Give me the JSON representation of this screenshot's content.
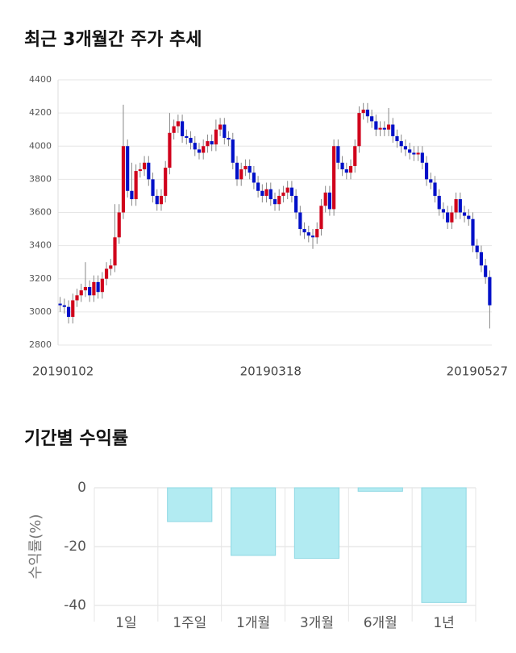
{
  "chart_data": [
    {
      "type": "candlestick",
      "title": "최근 3개월간 주가 추세",
      "categories": [
        "20190102",
        null,
        null,
        null,
        null,
        null,
        null,
        null,
        null,
        null,
        null,
        null,
        null,
        null,
        null,
        null,
        null,
        null,
        null,
        null,
        null,
        null,
        null,
        null,
        null,
        null,
        null,
        null,
        null,
        null,
        null,
        null,
        null,
        null,
        null,
        null,
        null,
        null,
        null,
        null,
        null,
        null,
        null,
        null,
        null,
        null,
        null,
        null,
        null,
        null,
        "20190318",
        null,
        null,
        null,
        null,
        null,
        null,
        null,
        null,
        null,
        null,
        null,
        null,
        null,
        null,
        null,
        null,
        null,
        null,
        null,
        null,
        null,
        null,
        null,
        null,
        null,
        null,
        null,
        null,
        null,
        null,
        null,
        null,
        null,
        null,
        null,
        null,
        null,
        null,
        null,
        null,
        null,
        null,
        null,
        null,
        null,
        null,
        null,
        null,
        null,
        null,
        null,
        "20190527"
      ],
      "open": [
        3050,
        3040,
        3030,
        2970,
        3070,
        3100,
        3130,
        3150,
        3100,
        3180,
        3120,
        3200,
        3260,
        3280,
        3450,
        3600,
        4000,
        3730,
        3680,
        3850,
        3860,
        3900,
        3800,
        3700,
        3650,
        3700,
        3870,
        4080,
        4120,
        4150,
        4060,
        4050,
        4020,
        3980,
        3960,
        4000,
        4030,
        4010,
        4100,
        4130,
        4050,
        4040,
        3900,
        3800,
        3860,
        3880,
        3840,
        3780,
        3730,
        3700,
        3740,
        3680,
        3650,
        3700,
        3720,
        3750,
        3700,
        3600,
        3500,
        3480,
        3460,
        3450,
        3500,
        3640,
        3720,
        3620,
        4000,
        3900,
        3860,
        3840,
        3880,
        4000,
        4200,
        4220,
        4180,
        4150,
        4100,
        4110,
        4100,
        4130,
        4060,
        4030,
        4000,
        3980,
        3960,
        3950,
        3960,
        3900,
        3800,
        3780,
        3700,
        3620,
        3600,
        3540,
        3600,
        3680,
        3600,
        3580,
        3560,
        3400,
        3360,
        3280,
        3210
      ],
      "high": [
        3090,
        3080,
        3070,
        3110,
        3140,
        3170,
        3300,
        3190,
        3220,
        3220,
        3240,
        3300,
        3320,
        3650,
        3650,
        4250,
        4040,
        3900,
        3890,
        3900,
        3940,
        3940,
        3840,
        3740,
        3740,
        3910,
        4200,
        4160,
        4190,
        4190,
        4100,
        4090,
        4060,
        4020,
        4040,
        4070,
        4070,
        4160,
        4170,
        4170,
        4090,
        4080,
        3940,
        3900,
        3920,
        3920,
        3880,
        3820,
        3770,
        3780,
        3780,
        3720,
        3740,
        3760,
        3790,
        3790,
        3740,
        3640,
        3540,
        3520,
        3500,
        3540,
        3680,
        3760,
        3760,
        4040,
        4040,
        3940,
        3900,
        3920,
        4040,
        4240,
        4260,
        4260,
        4220,
        4190,
        4150,
        4150,
        4230,
        4170,
        4100,
        4070,
        4040,
        4020,
        4000,
        4000,
        4000,
        3940,
        3840,
        3820,
        3740,
        3660,
        3640,
        3640,
        3720,
        3720,
        3640,
        3620,
        3600,
        3440,
        3400,
        3320,
        3250
      ],
      "low": [
        3000,
        2990,
        2930,
        2930,
        3030,
        3060,
        3090,
        3060,
        3060,
        3080,
        3080,
        3160,
        3220,
        3240,
        3410,
        3560,
        3690,
        3640,
        3640,
        3810,
        3820,
        3760,
        3660,
        3610,
        3610,
        3660,
        3830,
        4040,
        4080,
        4020,
        4010,
        3980,
        3940,
        3920,
        3920,
        3960,
        3970,
        3970,
        4060,
        4010,
        4000,
        3860,
        3760,
        3760,
        3820,
        3800,
        3740,
        3690,
        3660,
        3660,
        3640,
        3610,
        3610,
        3660,
        3680,
        3660,
        3560,
        3460,
        3440,
        3420,
        3380,
        3410,
        3460,
        3600,
        3580,
        3580,
        3860,
        3820,
        3800,
        3800,
        3840,
        3960,
        4160,
        4140,
        4110,
        4060,
        4060,
        4060,
        4060,
        4020,
        3990,
        3960,
        3940,
        3920,
        3910,
        3910,
        3860,
        3760,
        3740,
        3660,
        3580,
        3560,
        3500,
        3500,
        3560,
        3560,
        3540,
        3520,
        3360,
        3320,
        3240,
        3170,
        2900
      ],
      "close": [
        3040,
        3030,
        2970,
        3070,
        3100,
        3130,
        3150,
        3100,
        3180,
        3120,
        3200,
        3260,
        3280,
        3450,
        3600,
        4000,
        3730,
        3680,
        3850,
        3860,
        3900,
        3800,
        3700,
        3650,
        3700,
        3870,
        4080,
        4120,
        4150,
        4060,
        4050,
        4020,
        3980,
        3960,
        4000,
        4030,
        4010,
        4100,
        4130,
        4050,
        4040,
        3900,
        3800,
        3860,
        3880,
        3840,
        3780,
        3730,
        3700,
        3740,
        3680,
        3650,
        3700,
        3720,
        3750,
        3700,
        3600,
        3500,
        3480,
        3460,
        3450,
        3500,
        3640,
        3720,
        3620,
        4000,
        3900,
        3860,
        3840,
        3880,
        4000,
        4200,
        4220,
        4180,
        4150,
        4100,
        4110,
        4100,
        4130,
        4060,
        4030,
        4000,
        3980,
        3960,
        3950,
        3960,
        3900,
        3800,
        3780,
        3700,
        3620,
        3600,
        3540,
        3600,
        3680,
        3600,
        3580,
        3560,
        3400,
        3360,
        3280,
        3210,
        3040
      ],
      "up_color": "#d0021b",
      "down_color": "#0010c8",
      "ylim": [
        2800,
        4400
      ],
      "yticks": [
        2800,
        3000,
        3200,
        3400,
        3600,
        3800,
        4000,
        4200,
        4400
      ],
      "grid": true
    },
    {
      "type": "bar",
      "title": "기간별 수익률",
      "y_label": "수익률(%)",
      "categories": [
        "1일",
        "1주일",
        "1개월",
        "3개월",
        "6개월",
        "1년"
      ],
      "values": [
        0,
        -11.5,
        -23,
        -24,
        -1.2,
        -39
      ],
      "color": "#b2ebf2",
      "ylim": [
        -40,
        0
      ],
      "yticks": [
        0,
        -20,
        -40
      ],
      "grid": true
    }
  ]
}
